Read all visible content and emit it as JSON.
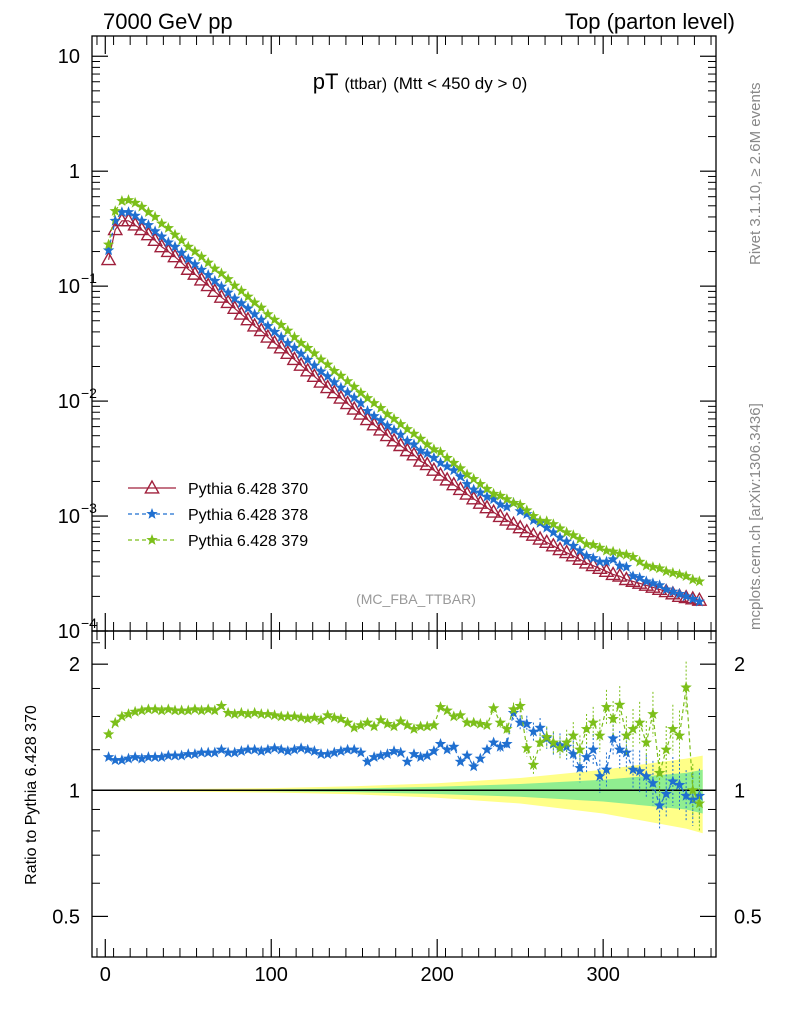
{
  "header": {
    "left": "7000 GeV pp",
    "right": "Top (parton level)"
  },
  "plot_title": {
    "main": "pT",
    "sub": "(ttbar)",
    "cond": "(Mtt < 450 dy > 0)"
  },
  "watermark": "(MC_FBA_TTBAR)",
  "side_text": {
    "rivet": "Rivet 3.1.10, ≥ 2.6M events",
    "mcplots": "mcplots.cern.ch [arXiv:1306.3436]"
  },
  "colors": {
    "s370": "#a0203c",
    "s378": "#1f6fd0",
    "s379": "#7cbf1a",
    "band_inner": "#90ee90",
    "band_outer": "#ffff88"
  },
  "chart_data": [
    {
      "type": "scatter",
      "scale": "log",
      "xlim": [
        -8,
        368
      ],
      "ylim": [
        0.0001,
        15
      ],
      "y_ticks": [
        "10",
        "1",
        "10−1",
        "10−2",
        "10−3",
        "10−4"
      ],
      "legend_position": "bottom-left",
      "grid": false,
      "series": [
        {
          "name": "Pythia 6.428 370",
          "marker": "open-triangle",
          "line": "solid",
          "x": [
            2,
            6,
            10,
            14,
            18,
            22,
            26,
            30,
            34,
            38,
            42,
            46,
            50,
            54,
            58,
            62,
            66,
            70,
            74,
            78,
            82,
            86,
            90,
            94,
            98,
            102,
            106,
            110,
            114,
            118,
            122,
            126,
            130,
            134,
            138,
            142,
            146,
            150,
            154,
            158,
            162,
            166,
            170,
            174,
            178,
            182,
            186,
            190,
            194,
            198,
            202,
            206,
            210,
            214,
            218,
            222,
            226,
            230,
            234,
            238,
            242,
            246,
            250,
            254,
            258,
            262,
            266,
            270,
            274,
            278,
            282,
            286,
            290,
            294,
            298,
            302,
            306,
            310,
            314,
            318,
            322,
            326,
            330,
            334,
            338,
            342,
            346,
            350,
            354,
            358
          ],
          "y": [
            0.17,
            0.31,
            0.37,
            0.37,
            0.34,
            0.31,
            0.28,
            0.25,
            0.22,
            0.2,
            0.18,
            0.16,
            0.14,
            0.127,
            0.113,
            0.101,
            0.09,
            0.08,
            0.072,
            0.064,
            0.057,
            0.051,
            0.045,
            0.041,
            0.036,
            0.032,
            0.029,
            0.026,
            0.023,
            0.0205,
            0.0183,
            0.0164,
            0.0146,
            0.0131,
            0.0118,
            0.0106,
            0.0095,
            0.0085,
            0.0077,
            0.0069,
            0.0062,
            0.0056,
            0.005,
            0.0045,
            0.0041,
            0.0037,
            0.0034,
            0.003,
            0.0028,
            0.0025,
            0.00227,
            0.00206,
            0.00187,
            0.0017,
            0.00155,
            0.00141,
            0.00129,
            0.00118,
            0.00108,
            0.00099,
            0.00092,
            0.00085,
            0.00079,
            0.00073,
            0.00068,
            0.00063,
            0.00059,
            0.00055,
            0.00051,
            0.00048,
            0.00045,
            0.00042,
            0.00039,
            0.00037,
            0.00035,
            0.00033,
            0.00031,
            0.0003,
            0.00028,
            0.00027,
            0.00026,
            0.00025,
            0.00024,
            0.00023,
            0.00022,
            0.00021,
            0.0002,
            0.000195,
            0.00019,
            0.000185
          ]
        },
        {
          "name": "Pythia 6.428 378",
          "marker": "star",
          "line": "dashed",
          "x": [
            2,
            6,
            10,
            14,
            18,
            22,
            26,
            30,
            34,
            38,
            42,
            46,
            50,
            54,
            58,
            62,
            66,
            70,
            74,
            78,
            82,
            86,
            90,
            94,
            98,
            102,
            106,
            110,
            114,
            118,
            122,
            126,
            130,
            134,
            138,
            142,
            146,
            150,
            154,
            158,
            162,
            166,
            170,
            174,
            178,
            182,
            186,
            190,
            194,
            198,
            202,
            206,
            210,
            214,
            218,
            222,
            226,
            230,
            234,
            238,
            242,
            246,
            250,
            254,
            258,
            262,
            266,
            270,
            274,
            278,
            282,
            286,
            290,
            294,
            298,
            302,
            306,
            310,
            314,
            318,
            322,
            326,
            330,
            334,
            338,
            342,
            346,
            350,
            354,
            358
          ],
          "y": [
            0.205,
            0.37,
            0.44,
            0.44,
            0.41,
            0.37,
            0.34,
            0.3,
            0.27,
            0.24,
            0.22,
            0.195,
            0.172,
            0.155,
            0.139,
            0.125,
            0.111,
            0.099,
            0.088,
            0.078,
            0.071,
            0.064,
            0.057,
            0.051,
            0.045,
            0.04,
            0.036,
            0.032,
            0.029,
            0.0258,
            0.0229,
            0.0204,
            0.0181,
            0.0164,
            0.0146,
            0.0131,
            0.0119,
            0.0107,
            0.0096,
            0.0082,
            0.0074,
            0.0068,
            0.0061,
            0.0056,
            0.0051,
            0.0045,
            0.0042,
            0.0037,
            0.0035,
            0.0032,
            0.0029,
            0.0027,
            0.0025,
            0.0022,
            0.0019,
            0.0017,
            0.0016,
            0.00147,
            0.0014,
            0.00126,
            0.0012,
            0.0013,
            0.0011,
            0.00104,
            0.00092,
            0.00087,
            0.00079,
            0.00072,
            0.00065,
            0.0006,
            0.00055,
            0.0005,
            0.00045,
            0.00043,
            0.0004,
            0.0004,
            0.00042,
            0.00037,
            0.00036,
            0.0003,
            0.00029,
            0.00027,
            0.00026,
            0.00025,
            0.00023,
            0.00022,
            0.00021,
            0.0002,
            0.00019,
            0.00018
          ]
        },
        {
          "name": "Pythia 6.428 379",
          "marker": "star",
          "line": "dashed",
          "x": [
            2,
            6,
            10,
            14,
            18,
            22,
            26,
            30,
            34,
            38,
            42,
            46,
            50,
            54,
            58,
            62,
            66,
            70,
            74,
            78,
            82,
            86,
            90,
            94,
            98,
            102,
            106,
            110,
            114,
            118,
            122,
            126,
            130,
            134,
            138,
            142,
            146,
            150,
            154,
            158,
            162,
            166,
            170,
            174,
            178,
            182,
            186,
            190,
            194,
            198,
            202,
            206,
            210,
            214,
            218,
            222,
            226,
            230,
            234,
            238,
            242,
            246,
            250,
            254,
            258,
            262,
            266,
            270,
            274,
            278,
            282,
            286,
            290,
            294,
            298,
            302,
            306,
            310,
            314,
            318,
            322,
            326,
            330,
            334,
            338,
            342,
            346,
            350,
            354,
            358
          ],
          "y": [
            0.23,
            0.45,
            0.55,
            0.56,
            0.53,
            0.49,
            0.44,
            0.4,
            0.35,
            0.32,
            0.28,
            0.25,
            0.22,
            0.2,
            0.18,
            0.16,
            0.142,
            0.129,
            0.115,
            0.101,
            0.091,
            0.081,
            0.072,
            0.065,
            0.057,
            0.051,
            0.046,
            0.041,
            0.036,
            0.032,
            0.029,
            0.026,
            0.023,
            0.0208,
            0.0183,
            0.0166,
            0.0149,
            0.0133,
            0.0118,
            0.0106,
            0.0096,
            0.0087,
            0.0077,
            0.007,
            0.0063,
            0.0057,
            0.0052,
            0.0047,
            0.0042,
            0.0038,
            0.0036,
            0.0032,
            0.0029,
            0.0026,
            0.0023,
            0.0021,
            0.0019,
            0.00172,
            0.00156,
            0.0015,
            0.0014,
            0.0013,
            0.00125,
            0.00112,
            0.001,
            0.00091,
            0.0009,
            0.00085,
            0.00078,
            0.00072,
            0.00068,
            0.00063,
            0.00057,
            0.00056,
            0.00053,
            0.0005,
            0.00049,
            0.00047,
            0.00046,
            0.00044,
            0.0004,
            0.00037,
            0.00036,
            0.00035,
            0.00033,
            0.00032,
            0.00031,
            0.0003,
            0.00028,
            0.00027
          ]
        }
      ]
    },
    {
      "type": "line",
      "ylabel": "Ratio to Pythia 6.428 370",
      "scale": "log",
      "xlim": [
        -8,
        368
      ],
      "ylim": [
        0.4,
        2.4
      ],
      "x_ticks": [
        "0",
        "100",
        "200",
        "300"
      ],
      "y_ticks": [
        "2",
        "1",
        "0.5"
      ],
      "reference_line": 1,
      "bands": [
        {
          "name": "inner",
          "x": [
            0,
            50,
            100,
            150,
            200,
            250,
            300,
            350,
            360
          ],
          "half_width": [
            0.002,
            0.003,
            0.005,
            0.01,
            0.02,
            0.035,
            0.06,
            0.1,
            0.12
          ]
        },
        {
          "name": "outer",
          "x": [
            0,
            50,
            100,
            150,
            200,
            250,
            300,
            350,
            360
          ],
          "half_width": [
            0.004,
            0.007,
            0.012,
            0.022,
            0.04,
            0.07,
            0.12,
            0.19,
            0.21
          ]
        }
      ],
      "series": [
        {
          "name": "Pythia 6.428 378",
          "x": [
            2,
            6,
            10,
            14,
            18,
            22,
            26,
            30,
            34,
            38,
            42,
            46,
            50,
            54,
            58,
            62,
            66,
            70,
            74,
            78,
            82,
            86,
            90,
            94,
            98,
            102,
            106,
            110,
            114,
            118,
            122,
            126,
            130,
            134,
            138,
            142,
            146,
            150,
            154,
            158,
            162,
            166,
            170,
            174,
            178,
            182,
            186,
            190,
            194,
            198,
            202,
            206,
            210,
            214,
            218,
            222,
            226,
            230,
            234,
            238,
            242,
            246,
            250,
            254,
            258,
            262,
            266,
            270,
            274,
            278,
            282,
            286,
            290,
            294,
            298,
            302,
            306,
            310,
            314,
            318,
            322,
            326,
            330,
            334,
            338,
            342,
            346,
            350,
            354,
            358
          ],
          "y": [
            1.2,
            1.18,
            1.18,
            1.19,
            1.2,
            1.19,
            1.2,
            1.2,
            1.2,
            1.21,
            1.21,
            1.21,
            1.22,
            1.22,
            1.23,
            1.23,
            1.23,
            1.25,
            1.23,
            1.23,
            1.24,
            1.25,
            1.25,
            1.24,
            1.25,
            1.26,
            1.25,
            1.24,
            1.25,
            1.26,
            1.25,
            1.24,
            1.22,
            1.22,
            1.23,
            1.24,
            1.25,
            1.25,
            1.23,
            1.17,
            1.2,
            1.21,
            1.22,
            1.24,
            1.23,
            1.17,
            1.22,
            1.2,
            1.21,
            1.24,
            1.29,
            1.25,
            1.27,
            1.17,
            1.21,
            1.14,
            1.19,
            1.25,
            1.3,
            1.27,
            1.29,
            1.53,
            1.45,
            1.44,
            1.38,
            1.41,
            1.33,
            1.29,
            1.28,
            1.27,
            1.22,
            1.13,
            1.2,
            1.25,
            1.08,
            1.12,
            1.33,
            1.25,
            1.23,
            1.12,
            1.11,
            1.08,
            1.04,
            0.92,
            0.98,
            1.05,
            1.03,
            0.97,
            0.95,
            0.97
          ]
        },
        {
          "name": "Pythia 6.428 379",
          "x": [
            2,
            6,
            10,
            14,
            18,
            22,
            26,
            30,
            34,
            38,
            42,
            46,
            50,
            54,
            58,
            62,
            66,
            70,
            74,
            78,
            82,
            86,
            90,
            94,
            98,
            102,
            106,
            110,
            114,
            118,
            122,
            126,
            130,
            134,
            138,
            142,
            146,
            150,
            154,
            158,
            162,
            166,
            170,
            174,
            178,
            182,
            186,
            190,
            194,
            198,
            202,
            206,
            210,
            214,
            218,
            222,
            226,
            230,
            234,
            238,
            242,
            246,
            250,
            254,
            258,
            262,
            266,
            270,
            274,
            278,
            282,
            286,
            290,
            294,
            298,
            302,
            306,
            310,
            314,
            318,
            322,
            326,
            330,
            334,
            338,
            342,
            346,
            350,
            354,
            358
          ],
          "y": [
            1.36,
            1.45,
            1.5,
            1.52,
            1.54,
            1.55,
            1.56,
            1.56,
            1.55,
            1.56,
            1.55,
            1.55,
            1.55,
            1.56,
            1.55,
            1.56,
            1.55,
            1.59,
            1.53,
            1.52,
            1.53,
            1.52,
            1.53,
            1.52,
            1.52,
            1.51,
            1.5,
            1.5,
            1.5,
            1.49,
            1.48,
            1.49,
            1.47,
            1.51,
            1.49,
            1.48,
            1.45,
            1.41,
            1.43,
            1.45,
            1.42,
            1.47,
            1.44,
            1.42,
            1.46,
            1.43,
            1.4,
            1.42,
            1.42,
            1.43,
            1.58,
            1.55,
            1.5,
            1.51,
            1.45,
            1.45,
            1.44,
            1.43,
            1.57,
            1.45,
            1.4,
            1.56,
            1.59,
            1.26,
            1.15,
            1.3,
            1.34,
            1.3,
            1.26,
            1.3,
            1.35,
            1.25,
            1.4,
            1.45,
            1.35,
            1.58,
            1.48,
            1.6,
            1.35,
            1.4,
            1.45,
            1.3,
            1.52,
            1.1,
            1.25,
            1.4,
            1.35,
            1.76,
            1.0,
            0.93
          ]
        }
      ]
    }
  ]
}
